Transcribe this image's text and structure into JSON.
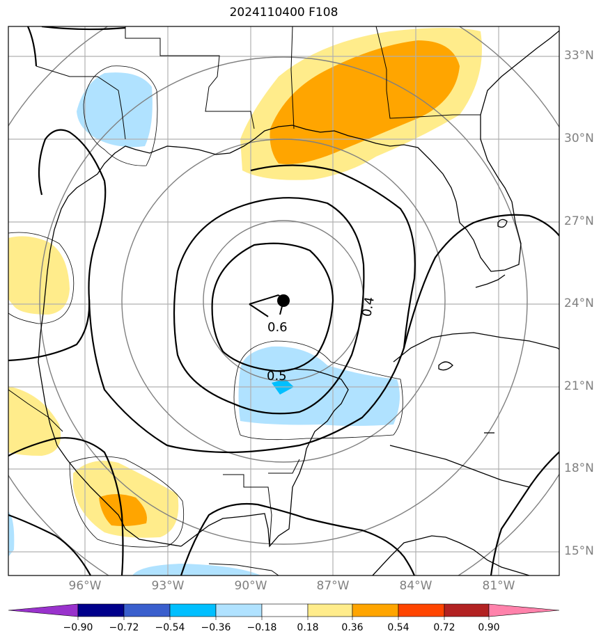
{
  "title": "2024110400 F108",
  "map": {
    "lat_labels": [
      "33°N",
      "30°N",
      "27°N",
      "24°N",
      "21°N",
      "18°N",
      "15°N"
    ],
    "lon_labels": [
      "96°W",
      "93°W",
      "90°W",
      "87°W",
      "84°W",
      "81°W"
    ],
    "contour_labels": [
      "0.6",
      "0.5",
      "0.4"
    ],
    "center_marker": "storm-center"
  },
  "colorbar": {
    "tick_labels": [
      "−0.90",
      "−0.72",
      "−0.54",
      "−0.36",
      "−0.18",
      "0.18",
      "0.36",
      "0.54",
      "0.72",
      "0.90"
    ],
    "colors": [
      "#9932cc",
      "#00008b",
      "#3a5fcd",
      "#00bfff",
      "#b0e2ff",
      "#ffffff",
      "#ffec8b",
      "#ffa500",
      "#ff4500",
      "#b22222",
      "#ff82ab"
    ]
  }
}
